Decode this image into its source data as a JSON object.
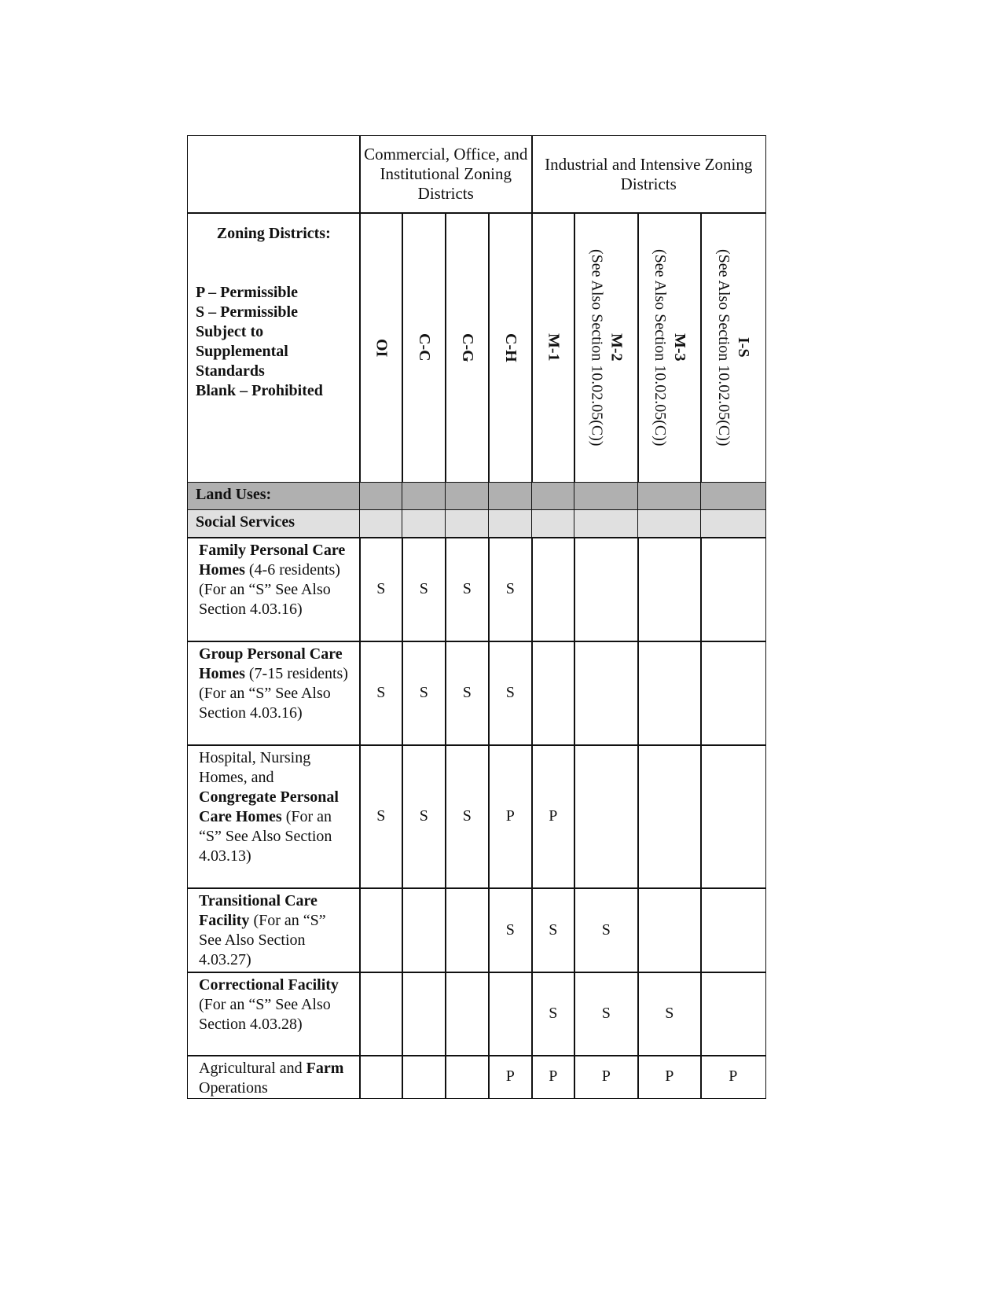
{
  "header": {
    "group_commercial": "Commercial, Office, and Institutional Zoning Districts",
    "group_industrial": "Industrial and Intensive Zoning Districts",
    "legend_title": "Zoning Districts:",
    "legend_lines": [
      "P – Permissible",
      "S – Permissible Subject to Supplemental Standards",
      "Blank – Prohibited"
    ],
    "districts": [
      {
        "code": "OI",
        "note": ""
      },
      {
        "code": "C-C",
        "note": ""
      },
      {
        "code": "C-G",
        "note": ""
      },
      {
        "code": "C-H",
        "note": ""
      },
      {
        "code": "M-1",
        "note": ""
      },
      {
        "code": "M-2",
        "note": "(See Also Section 10.02.05(C))"
      },
      {
        "code": "M-3",
        "note": "(See Also Section 10.02.05(C))"
      },
      {
        "code": "I-S",
        "note": "(See Also Section 10.02.05(C))"
      }
    ]
  },
  "bands": {
    "land_uses": "Land Uses:",
    "social_services": "Social Services"
  },
  "rows": [
    {
      "parts": [
        {
          "t": "Family Personal Care Homes",
          "b": true
        },
        {
          "t": " (4-6 residents) (For an “S” See Also Section 4.03.16)",
          "b": false
        }
      ],
      "values": [
        "S",
        "S",
        "S",
        "S",
        "",
        "",
        "",
        ""
      ]
    },
    {
      "parts": [
        {
          "t": "Group Personal Care Homes",
          "b": true
        },
        {
          "t": " (7-15 residents) (For an “S” See Also Section 4.03.16)",
          "b": false
        }
      ],
      "values": [
        "S",
        "S",
        "S",
        "S",
        "",
        "",
        "",
        ""
      ]
    },
    {
      "parts": [
        {
          "t": "Hospital, Nursing Homes, and ",
          "b": false
        },
        {
          "t": "Congregate Personal Care Homes",
          "b": true
        },
        {
          "t": " (For an “S” See Also Section 4.03.13)",
          "b": false
        }
      ],
      "values": [
        "S",
        "S",
        "S",
        "P",
        "P",
        "",
        "",
        ""
      ]
    },
    {
      "parts": [
        {
          "t": "Transitional Care Facility",
          "b": true
        },
        {
          "t": " (For an “S” See Also Section 4.03.27)",
          "b": false
        }
      ],
      "values": [
        "",
        "",
        "",
        "S",
        "S",
        "S",
        "",
        ""
      ]
    },
    {
      "parts": [
        {
          "t": "Correctional Facility",
          "b": true
        },
        {
          "t": " (For an “S” See Also Section 4.03.28)",
          "b": false
        }
      ],
      "values": [
        "",
        "",
        "",
        "",
        "S",
        "S",
        "S",
        ""
      ]
    },
    {
      "parts": [
        {
          "t": "Agricultural and ",
          "b": false
        },
        {
          "t": "Farm",
          "b": true
        },
        {
          "t": " Operations",
          "b": false
        }
      ],
      "values": [
        "",
        "",
        "",
        "P",
        "P",
        "P",
        "P",
        "P"
      ]
    }
  ]
}
